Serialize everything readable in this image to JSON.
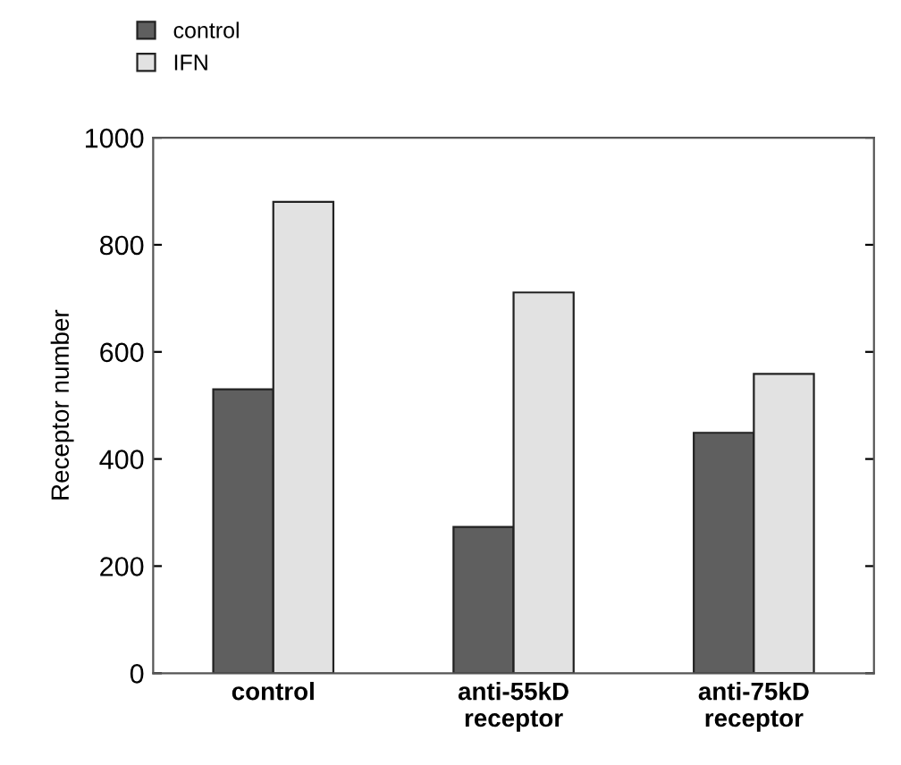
{
  "chart_data": {
    "type": "bar",
    "ylabel": "Receptor number",
    "categories": [
      "control",
      "anti-55kD\nreceptor",
      "anti-75kD\nreceptor"
    ],
    "series": [
      {
        "name": "control",
        "color": "#5f5f5f",
        "values": [
          530,
          273,
          449
        ]
      },
      {
        "name": "IFN",
        "color": "#e2e2e2",
        "values": [
          880,
          711,
          559
        ]
      }
    ],
    "ylim": [
      0,
      1000
    ],
    "yticks": [
      0,
      200,
      400,
      600,
      800,
      1000
    ],
    "grid": false,
    "legend": "top left"
  }
}
